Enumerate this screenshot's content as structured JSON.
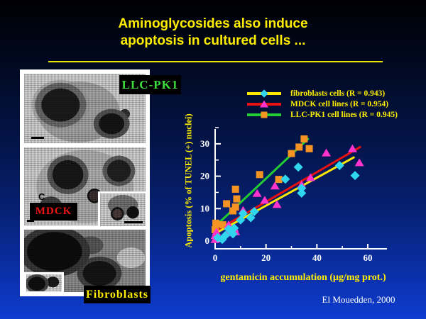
{
  "slide": {
    "title_line1": "Aminoglycosides also induce",
    "title_line2": "apoptosis in cultured cells ...",
    "title_color": "#ffee00",
    "citation": "El Mouedden, 2000"
  },
  "micrographs": {
    "llcpk1": "LLC-PK1",
    "mdck": "MDCK",
    "fibroblasts": "Fibroblasts",
    "annotation_c": "C",
    "label_colors": {
      "llcpk1": "#3ddd3d",
      "mdck": "#ee1515",
      "fibroblasts": "#ffee00"
    }
  },
  "chart_data": {
    "type": "scatter",
    "title": "",
    "xlabel": "gentamicin accumulation (μg/mg prot.)",
    "ylabel": "Apoptosis (% of TUNEL (+) nuclei)",
    "xlim": [
      0,
      66
    ],
    "ylim": [
      0,
      36
    ],
    "x_ticks": [
      0,
      20,
      40,
      60
    ],
    "x_minor_ticks": [
      10,
      30,
      50
    ],
    "y_ticks": [
      0,
      10,
      20,
      30
    ],
    "y_minor_ticks": [
      5,
      15,
      25,
      35
    ],
    "grid": false,
    "legend_position": "above plot, top right",
    "axis_color": "#ffffff",
    "tick_label_color": "#ffffff",
    "axis_label_color": "#ffee00",
    "series": [
      {
        "name": "fibroblasts cells (R = 0.943)",
        "marker": "diamond",
        "marker_color": "#30d5ee",
        "line_color": "#ffe800",
        "trend_x": [
          0,
          54.5
        ],
        "trend_y": [
          2.3,
          25.8
        ],
        "points": [
          [
            1,
            1
          ],
          [
            2.8,
            0.5
          ],
          [
            4,
            1.7
          ],
          [
            5.3,
            3.7
          ],
          [
            7,
            2.2
          ],
          [
            7.5,
            4
          ],
          [
            10,
            6.5
          ],
          [
            11,
            8.5
          ],
          [
            14,
            7.2
          ],
          [
            15.4,
            9.1
          ],
          [
            27.6,
            19.1
          ],
          [
            32.7,
            22.8
          ],
          [
            34,
            16.3
          ],
          [
            34,
            14.8
          ],
          [
            48.9,
            23.3
          ],
          [
            55,
            20.2
          ]
        ]
      },
      {
        "name": "MDCK cell lines (R = 0.954)",
        "marker": "triangle",
        "marker_color": "#ff33cc",
        "line_color": "#e81010",
        "trend_x": [
          0,
          57
        ],
        "trend_y": [
          3,
          29
        ],
        "points": [
          [
            0,
            0.5
          ],
          [
            0,
            1.7
          ],
          [
            0.5,
            2.8
          ],
          [
            5,
            2.6
          ],
          [
            5.3,
            5
          ],
          [
            7.5,
            4
          ],
          [
            8,
            2.9
          ],
          [
            11,
            9.5
          ],
          [
            16.5,
            14.7
          ],
          [
            19.5,
            12.6
          ],
          [
            23.5,
            17
          ],
          [
            24.3,
            11.3
          ],
          [
            34,
            17.4
          ],
          [
            37.5,
            19.6
          ],
          [
            43.7,
            27.2
          ],
          [
            54,
            28.5
          ],
          [
            56.7,
            24.2
          ]
        ]
      },
      {
        "name": "LLC-PK1 cell lines (R = 0.945)",
        "marker": "square",
        "marker_color": "#f59422",
        "line_color": "#22cc33",
        "trend_x": [
          0,
          36.5
        ],
        "trend_y": [
          4.5,
          31.5
        ],
        "points": [
          [
            0,
            3.5
          ],
          [
            0.3,
            5.5
          ],
          [
            3,
            5
          ],
          [
            4.5,
            11.5
          ],
          [
            7,
            9.3
          ],
          [
            8,
            10.5
          ],
          [
            8.5,
            13
          ],
          [
            8,
            16
          ],
          [
            17.5,
            20.5
          ],
          [
            25,
            19
          ],
          [
            30,
            27
          ],
          [
            33,
            29
          ],
          [
            35,
            31.5
          ],
          [
            37,
            28.5
          ]
        ]
      }
    ]
  }
}
